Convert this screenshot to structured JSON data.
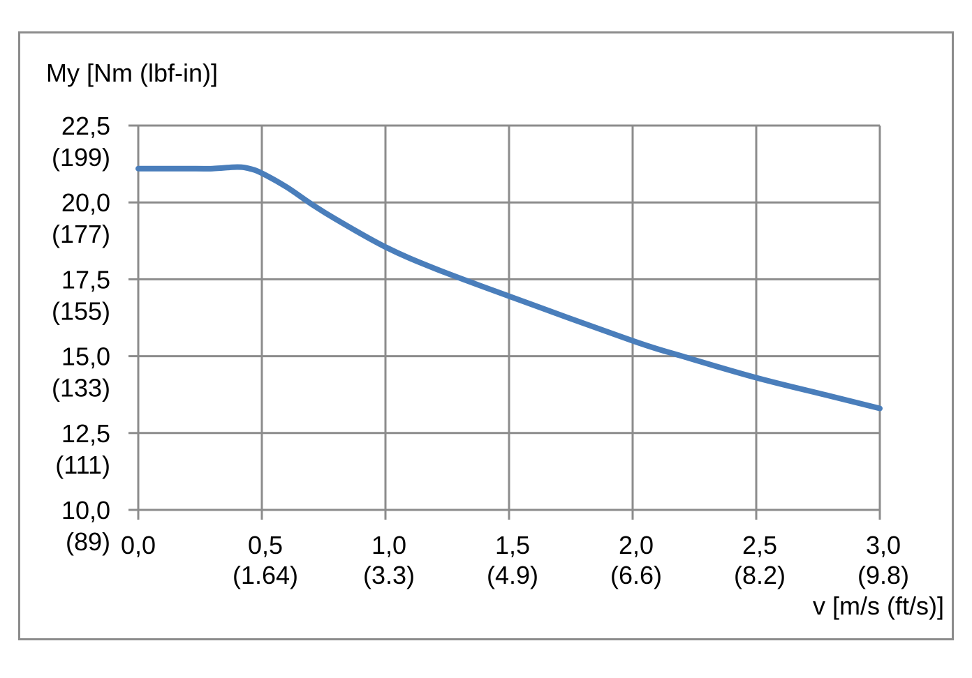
{
  "chart_data": {
    "type": "line",
    "ylabel": "My [Nm (lbf-in)]",
    "xlabel": "v [m/s (ft/s)]",
    "xlim": [
      0,
      3
    ],
    "ylim": [
      10,
      22.5
    ],
    "grid": true,
    "x_ticks": [
      {
        "value": 0.0,
        "label": "0,0",
        "sublabel": ""
      },
      {
        "value": 0.5,
        "label": "0,5",
        "sublabel": "(1.64)"
      },
      {
        "value": 1.0,
        "label": "1,0",
        "sublabel": "(3.3)"
      },
      {
        "value": 1.5,
        "label": "1,5",
        "sublabel": "(4.9)"
      },
      {
        "value": 2.0,
        "label": "2,0",
        "sublabel": "(6.6)"
      },
      {
        "value": 2.5,
        "label": "2,5",
        "sublabel": "(8.2)"
      },
      {
        "value": 3.0,
        "label": "3,0",
        "sublabel": "(9.8)"
      }
    ],
    "y_ticks": [
      {
        "value": 22.5,
        "label": "22,5",
        "sublabel": "(199)"
      },
      {
        "value": 20.0,
        "label": "20,0",
        "sublabel": "(177)"
      },
      {
        "value": 17.5,
        "label": "17,5",
        "sublabel": "(155)"
      },
      {
        "value": 15.0,
        "label": "15,0",
        "sublabel": "(133)"
      },
      {
        "value": 12.5,
        "label": "12,5",
        "sublabel": "(111)"
      },
      {
        "value": 10.0,
        "label": "10,0",
        "sublabel": "(89)"
      }
    ],
    "series": [
      {
        "color": "#4a7ebb",
        "x": [
          0.0,
          0.1,
          0.2,
          0.3,
          0.4,
          0.45,
          0.5,
          0.6,
          0.7,
          0.8,
          1.0,
          1.2,
          1.5,
          2.0,
          2.2,
          2.5,
          2.8,
          3.0
        ],
        "y": [
          21.1,
          21.1,
          21.1,
          21.1,
          21.15,
          21.1,
          20.95,
          20.5,
          19.95,
          19.45,
          18.55,
          17.85,
          16.95,
          15.5,
          15.0,
          14.3,
          13.7,
          13.3
        ]
      }
    ]
  }
}
